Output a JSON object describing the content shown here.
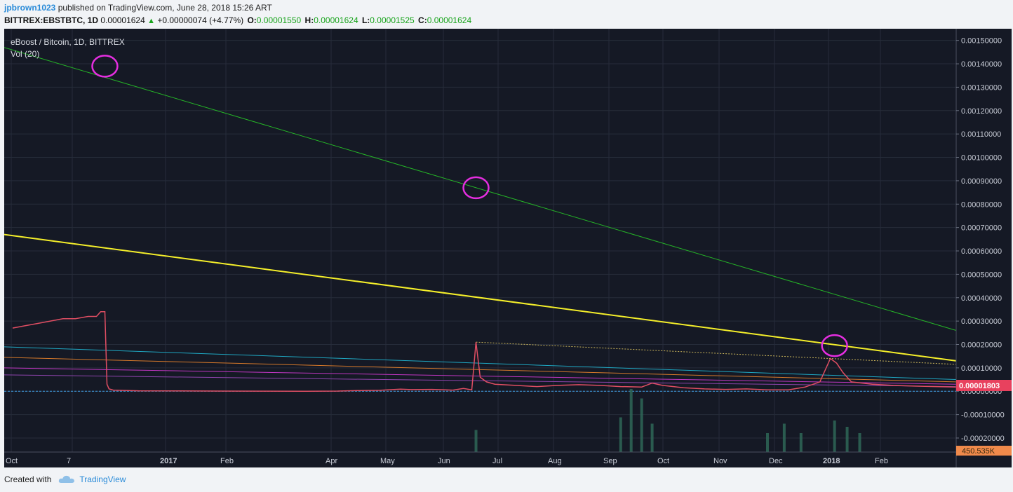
{
  "header": {
    "author": "jpbrown1023",
    "published": "published on TradingView.com, June 28, 2018 15:26 ART",
    "symbol": "BITTREX:EBSTBTC, 1D",
    "last": "0.00001624",
    "change": "+0.00000074 (+4.77%)",
    "open_label": "O:",
    "open": "0.00001550",
    "high_label": "H:",
    "high": "0.00001624",
    "low_label": "L:",
    "low": "0.00001525",
    "close_label": "C:",
    "close": "0.00001624",
    "up_icon": "triangle-up-icon"
  },
  "footer": {
    "created": "Created with",
    "brand": "TradingView",
    "logo_icon": "tradingview-cloud-icon"
  },
  "chart_data": {
    "type": "line",
    "title": "eBoost / Bitcoin, 1D, BITTREX",
    "indicator": "Vol (20)",
    "x": [
      "Oct",
      "7",
      "2017",
      "Feb",
      "Apr",
      "May",
      "Jun",
      "Jul",
      "Aug",
      "Sep",
      "Oct",
      "Nov",
      "Dec",
      "2018",
      "Feb"
    ],
    "bold_x": [
      "2017",
      "2018"
    ],
    "yticks": [
      0.0015,
      0.0014,
      0.0013,
      0.0012,
      0.0011,
      0.001,
      0.0009,
      0.0008,
      0.0007,
      0.0006,
      0.0005,
      0.0004,
      0.0003,
      0.0002,
      0.0001,
      0,
      -0.0001,
      -0.0002
    ],
    "ytick_labels": [
      "0.00150000",
      "0.00140000",
      "0.00130000",
      "0.00120000",
      "0.00110000",
      "0.00100000",
      "0.00090000",
      "0.00080000",
      "0.00070000",
      "0.00060000",
      "0.00050000",
      "0.00040000",
      "0.00030000",
      "0.00020000",
      "0.00010000",
      "0.00000000",
      "-0.00010000",
      "-0.00020000"
    ],
    "ylim": [
      -0.00026,
      0.00155
    ],
    "price_label": "0.00001803",
    "volume_label": "450.535K",
    "series": [
      {
        "values": [
          [
            0,
            0.00027
          ],
          [
            6,
            0.00028
          ],
          [
            12,
            0.00029
          ],
          [
            18,
            0.0003
          ],
          [
            24,
            0.00031
          ],
          [
            30,
            0.00031
          ],
          [
            36,
            0.00032
          ],
          [
            40,
            0.00032
          ],
          [
            42,
            0.00034
          ],
          [
            44,
            0.00034
          ],
          [
            45,
            3e-05
          ],
          [
            46,
            1e-05
          ],
          [
            48,
            5e-06
          ],
          [
            60,
            2e-06
          ],
          [
            80,
            1.5e-06
          ],
          [
            100,
            8e-07
          ],
          [
            120,
            3e-07
          ],
          [
            140,
            2e-07
          ],
          [
            155,
            8e-07
          ],
          [
            165,
            3e-06
          ],
          [
            175,
            4e-06
          ],
          [
            185,
            9e-06
          ],
          [
            190,
            7e-06
          ],
          [
            200,
            8e-06
          ],
          [
            210,
            5e-06
          ],
          [
            215,
            1.2e-05
          ],
          [
            219,
            6e-06
          ],
          [
            221,
            0.00021
          ],
          [
            223,
            6e-05
          ],
          [
            226,
            4e-05
          ],
          [
            230,
            3e-05
          ],
          [
            240,
            2.5e-05
          ],
          [
            250,
            2e-05
          ],
          [
            260,
            2.5e-05
          ],
          [
            270,
            2.8e-05
          ],
          [
            280,
            2.5e-05
          ],
          [
            290,
            2e-05
          ],
          [
            300,
            1.8e-05
          ],
          [
            305,
            3.5e-05
          ],
          [
            310,
            2.5e-05
          ],
          [
            320,
            1.5e-05
          ],
          [
            330,
            1e-05
          ],
          [
            340,
            8e-06
          ],
          [
            350,
            1e-05
          ],
          [
            360,
            6e-06
          ],
          [
            370,
            6e-06
          ],
          [
            378,
            1.8e-05
          ],
          [
            385,
            4e-05
          ],
          [
            390,
            0.00014
          ],
          [
            393,
            0.00012
          ],
          [
            396,
            8e-05
          ],
          [
            400,
            4e-05
          ],
          [
            410,
            3e-05
          ],
          [
            420,
            2.5e-05
          ],
          [
            430,
            2.2e-05
          ],
          [
            440,
            2e-05
          ],
          [
            450,
            1.8e-05
          ]
        ]
      }
    ],
    "trendlines": [
      {
        "color": "#25b427",
        "p1": [
          -4,
          0.00147
        ],
        "p2": [
          450,
          0.00026
        ]
      },
      {
        "color": "#f5ef2a",
        "p1": [
          -4,
          0.00067
        ],
        "p2": [
          450,
          0.00013
        ]
      },
      {
        "color": "#1fa7c2",
        "p1": [
          -4,
          0.00019
        ],
        "p2": [
          450,
          5e-05
        ]
      },
      {
        "color": "#d6792a",
        "p1": [
          -4,
          0.000145
        ],
        "p2": [
          450,
          4e-05
        ]
      },
      {
        "color": "#c036c2",
        "p1": [
          -4,
          0.0001
        ],
        "p2": [
          450,
          3e-05
        ]
      },
      {
        "color": "#8e44ad",
        "p1": [
          -4,
          7e-05
        ],
        "p2": [
          450,
          2e-05
        ]
      }
    ],
    "markers": [
      {
        "color": "#e52ee0",
        "x": 44,
        "y": 0.00139
      },
      {
        "color": "#e52ee0",
        "x": 221,
        "y": 0.00087
      },
      {
        "color": "#e52ee0",
        "x": 392,
        "y": 0.000195
      }
    ],
    "volume_bars": [
      {
        "x": 221,
        "v": 0.35
      },
      {
        "x": 290,
        "v": 0.55
      },
      {
        "x": 295,
        "v": 1.0
      },
      {
        "x": 300,
        "v": 0.85
      },
      {
        "x": 305,
        "v": 0.45
      },
      {
        "x": 360,
        "v": 0.3
      },
      {
        "x": 368,
        "v": 0.45
      },
      {
        "x": 376,
        "v": 0.3
      },
      {
        "x": 392,
        "v": 0.5
      },
      {
        "x": 398,
        "v": 0.4
      },
      {
        "x": 404,
        "v": 0.3
      }
    ]
  }
}
